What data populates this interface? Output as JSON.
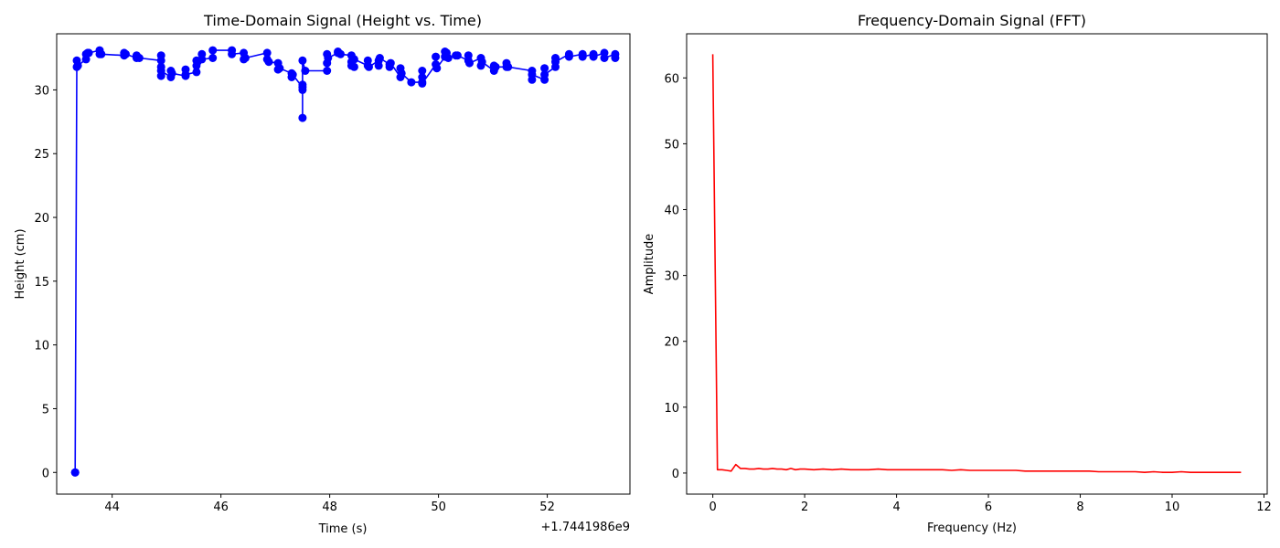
{
  "chart_data": [
    {
      "type": "line",
      "title": "Time-Domain Signal (Height vs. Time)",
      "xlabel": "Time (s)",
      "ylabel": "Height (cm)",
      "x_offset_label": "+1.7441986e9",
      "xlim": [
        42.98,
        53.52
      ],
      "ylim": [
        -1.7,
        34.4
      ],
      "x_ticks": [
        44,
        46,
        48,
        50,
        52
      ],
      "y_ticks": [
        0,
        5,
        10,
        15,
        20,
        25,
        30
      ],
      "grid": false,
      "color": "#0000ff",
      "markers": true,
      "series": [
        {
          "x": [
            43.32,
            43.32,
            43.35,
            43.35,
            43.37,
            43.52,
            43.52,
            43.55,
            43.57,
            43.77,
            43.77,
            43.8,
            44.22,
            44.22,
            44.25,
            44.45,
            44.45,
            44.5,
            44.9,
            44.9,
            44.9,
            44.9,
            44.9,
            45.08,
            45.08,
            45.1,
            45.35,
            45.35,
            45.35,
            45.55,
            45.55,
            45.55,
            45.57,
            45.65,
            45.65,
            45.85,
            45.85,
            46.2,
            46.2,
            46.42,
            46.42,
            46.45,
            46.85,
            46.85,
            46.88,
            47.05,
            47.05,
            47.08,
            47.3,
            47.3,
            47.32,
            47.5,
            47.5,
            47.5,
            47.5,
            47.5,
            47.55,
            47.95,
            47.95,
            47.95,
            47.97,
            48.15,
            48.15,
            48.2,
            48.4,
            48.4,
            48.4,
            48.45,
            48.45,
            48.7,
            48.7,
            48.72,
            48.9,
            48.9,
            48.92,
            49.1,
            49.1,
            49.12,
            49.3,
            49.3,
            49.32,
            49.5,
            49.7,
            49.7,
            49.7,
            49.7,
            49.95,
            49.95,
            49.97,
            50.12,
            50.12,
            50.15,
            50.18,
            50.32,
            50.35,
            50.55,
            50.55,
            50.57,
            50.78,
            50.78,
            50.8,
            51.02,
            51.02,
            51.05,
            51.25,
            51.25,
            51.28,
            51.72,
            51.72,
            51.72,
            51.95,
            51.95,
            51.95,
            52.15,
            52.15,
            52.15,
            52.4,
            52.4,
            52.65,
            52.65,
            52.85,
            52.85,
            53.05,
            53.05,
            53.25,
            53.25
          ],
          "y": [
            0,
            0,
            31.8,
            32.3,
            31.9,
            32.4,
            32.8,
            32.9,
            32.9,
            33.1,
            32.8,
            32.8,
            32.7,
            32.9,
            32.8,
            32.5,
            32.7,
            32.5,
            32.3,
            32.7,
            31.8,
            31.1,
            31.5,
            31.0,
            31.5,
            31.3,
            31.1,
            31.6,
            31.2,
            31.4,
            31.9,
            32.3,
            32.2,
            32.8,
            32.4,
            32.5,
            33.1,
            33.1,
            32.8,
            32.9,
            32.4,
            32.5,
            32.9,
            32.4,
            32.2,
            32.1,
            31.6,
            31.7,
            31.3,
            31.0,
            31.2,
            30.2,
            30.0,
            27.8,
            30.4,
            32.3,
            31.5,
            31.5,
            32.1,
            32.8,
            32.5,
            32.9,
            33.0,
            32.8,
            32.7,
            32.2,
            31.9,
            31.8,
            32.4,
            31.9,
            32.3,
            31.8,
            32.3,
            31.9,
            32.5,
            32.0,
            31.8,
            32.1,
            31.0,
            31.7,
            31.3,
            30.6,
            30.6,
            31.0,
            31.5,
            30.5,
            32.0,
            32.6,
            31.7,
            32.6,
            33.0,
            32.9,
            32.5,
            32.7,
            32.7,
            32.3,
            32.7,
            32.1,
            32.5,
            31.9,
            32.2,
            31.5,
            31.9,
            31.8,
            31.8,
            32.1,
            31.8,
            31.5,
            30.8,
            31.2,
            30.8,
            31.7,
            31.2,
            31.8,
            32.5,
            32.2,
            32.8,
            32.6,
            32.8,
            32.6,
            32.8,
            32.6,
            32.9,
            32.5,
            32.8,
            32.5
          ]
        }
      ]
    },
    {
      "type": "line",
      "title": "Frequency-Domain Signal (FFT)",
      "xlabel": "Frequency (Hz)",
      "ylabel": "Amplitude",
      "xlim": [
        -0.57,
        12.07
      ],
      "ylim": [
        -3.2,
        66.7
      ],
      "x_ticks": [
        0,
        2,
        4,
        6,
        8,
        10,
        12
      ],
      "y_ticks": [
        0,
        10,
        20,
        30,
        40,
        50,
        60
      ],
      "grid": false,
      "color": "#ff0000",
      "markers": false,
      "series": [
        {
          "x": [
            0.0,
            0.1,
            0.2,
            0.3,
            0.4,
            0.5,
            0.6,
            0.7,
            0.8,
            0.9,
            1.0,
            1.1,
            1.2,
            1.3,
            1.4,
            1.5,
            1.6,
            1.7,
            1.8,
            1.9,
            2.0,
            2.2,
            2.4,
            2.6,
            2.8,
            3.0,
            3.2,
            3.4,
            3.6,
            3.8,
            4.0,
            4.2,
            4.4,
            4.6,
            4.8,
            5.0,
            5.2,
            5.4,
            5.6,
            5.8,
            6.0,
            6.2,
            6.4,
            6.6,
            6.8,
            7.0,
            7.2,
            7.4,
            7.6,
            7.8,
            8.0,
            8.2,
            8.4,
            8.6,
            8.8,
            9.0,
            9.2,
            9.4,
            9.6,
            9.8,
            10.0,
            10.2,
            10.4,
            10.6,
            10.8,
            11.0,
            11.2,
            11.5
          ],
          "y": [
            63.6,
            0.5,
            0.5,
            0.4,
            0.3,
            1.3,
            0.7,
            0.7,
            0.6,
            0.6,
            0.7,
            0.6,
            0.6,
            0.7,
            0.6,
            0.6,
            0.5,
            0.7,
            0.5,
            0.6,
            0.6,
            0.5,
            0.6,
            0.5,
            0.6,
            0.5,
            0.5,
            0.5,
            0.6,
            0.5,
            0.5,
            0.5,
            0.5,
            0.5,
            0.5,
            0.5,
            0.4,
            0.5,
            0.4,
            0.4,
            0.4,
            0.4,
            0.4,
            0.4,
            0.3,
            0.3,
            0.3,
            0.3,
            0.3,
            0.3,
            0.3,
            0.3,
            0.2,
            0.2,
            0.2,
            0.2,
            0.2,
            0.1,
            0.2,
            0.1,
            0.1,
            0.2,
            0.1,
            0.1,
            0.1,
            0.1,
            0.1,
            0.1
          ]
        }
      ]
    }
  ]
}
